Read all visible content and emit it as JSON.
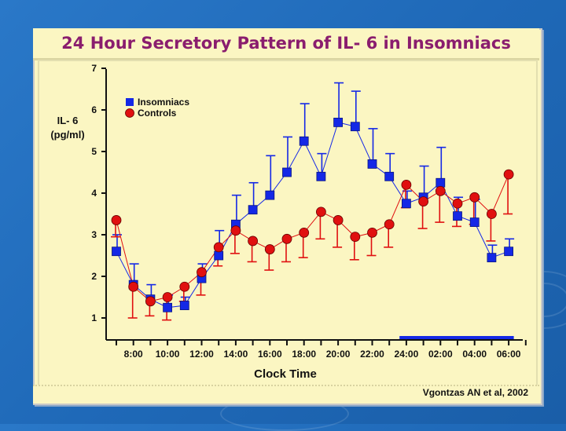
{
  "chart_data": {
    "type": "line",
    "title": "24 Hour Secretory Pattern of IL- 6 in Insomniacs",
    "ylabel_line1": "IL- 6",
    "ylabel_line2": "(pg/ml)",
    "xlabel": "Clock Time",
    "ylim": [
      0.6,
      7
    ],
    "yticks": [
      1,
      2,
      3,
      4,
      5,
      6,
      7
    ],
    "xticks": [
      "8:00",
      "10:00",
      "12:00",
      "14:00",
      "16:00",
      "18:00",
      "20:00",
      "22:00",
      "24:00",
      "02:00",
      "04:00",
      "06:00"
    ],
    "x_index_range": [
      -1,
      23
    ],
    "series": [
      {
        "name": "Insomniacs",
        "color": "#1428e6",
        "marker": "square",
        "x": [
          -1,
          0,
          1,
          2,
          3,
          4,
          5,
          6,
          7,
          8,
          9,
          10,
          11,
          12,
          13,
          14,
          15,
          16,
          17,
          18,
          19,
          20,
          21,
          22
        ],
        "values": [
          2.6,
          1.8,
          1.45,
          1.25,
          1.3,
          1.95,
          2.5,
          3.25,
          3.6,
          3.95,
          4.5,
          5.25,
          4.4,
          5.7,
          5.6,
          4.7,
          4.4,
          3.75,
          3.9,
          4.25,
          3.45,
          3.3,
          2.45,
          2.6
        ],
        "errors": [
          0.4,
          0.5,
          0.35,
          0.3,
          0.2,
          0.35,
          0.6,
          0.7,
          0.65,
          0.95,
          0.85,
          0.9,
          0.55,
          0.95,
          0.85,
          0.85,
          0.55,
          0.3,
          0.75,
          0.85,
          0.45,
          0.55,
          0.3,
          0.3
        ]
      },
      {
        "name": "Controls",
        "color": "#e01010",
        "marker": "circle",
        "x": [
          -1,
          0,
          1,
          2,
          3,
          4,
          5,
          6,
          7,
          8,
          9,
          10,
          11,
          12,
          13,
          14,
          15,
          16,
          17,
          18,
          19,
          20,
          21,
          22
        ],
        "values": [
          3.35,
          1.75,
          1.4,
          1.5,
          1.75,
          2.1,
          2.7,
          3.1,
          2.85,
          2.65,
          2.9,
          3.05,
          3.55,
          3.35,
          2.95,
          3.05,
          3.25,
          4.2,
          3.8,
          4.05,
          3.75,
          3.9,
          3.5,
          4.45
        ],
        "errors": [
          0.4,
          0.75,
          0.35,
          0.55,
          0.35,
          0.55,
          0.45,
          0.55,
          0.5,
          0.5,
          0.55,
          0.6,
          0.65,
          0.65,
          0.55,
          0.55,
          0.55,
          0.55,
          0.65,
          0.75,
          0.55,
          0.65,
          0.65,
          0.95
        ]
      }
    ],
    "legend_position": "top-left",
    "sleep_bar_label": "",
    "citation": "Vgontzas AN et al, 2002"
  }
}
